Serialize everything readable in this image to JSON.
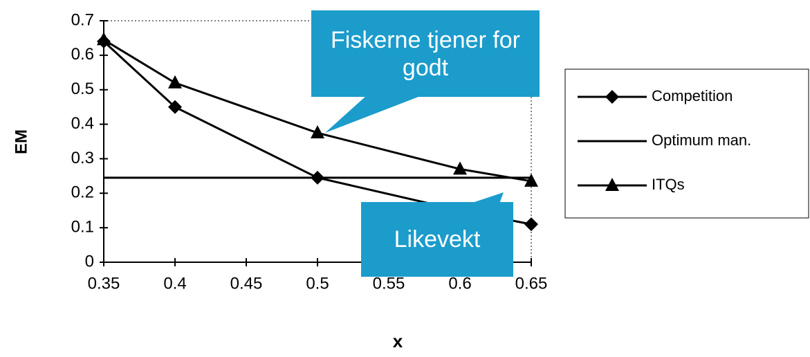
{
  "chart_data": {
    "type": "line",
    "x": [
      0.35,
      0.4,
      0.5,
      0.6,
      0.65
    ],
    "xlabel": "x",
    "ylabel": "EM",
    "xlim": [
      0.35,
      0.65
    ],
    "xticks": [
      0.35,
      0.4,
      0.45,
      0.5,
      0.55,
      0.6,
      0.65
    ],
    "ylim": [
      0,
      0.7
    ],
    "yticks": [
      0,
      0.1,
      0.2,
      0.3,
      0.4,
      0.5,
      0.6,
      0.7
    ],
    "series": [
      {
        "name": "Competition",
        "color": "#000000",
        "marker": "diamond",
        "values": [
          0.64,
          0.45,
          0.245,
          0.15,
          0.11
        ]
      },
      {
        "name": "Optimum man.",
        "color": "#000000",
        "marker": "none",
        "values": [
          0.245,
          0.245,
          0.245,
          0.245,
          0.245
        ]
      },
      {
        "name": "ITQs",
        "color": "#000000",
        "marker": "triangle",
        "values": [
          0.645,
          0.52,
          0.375,
          0.27,
          0.235
        ]
      }
    ],
    "annotations": [
      "Fiskerne tjener for godt",
      "Likevekt"
    ],
    "annotation_color": "#1b9ccb",
    "legend": "right"
  }
}
